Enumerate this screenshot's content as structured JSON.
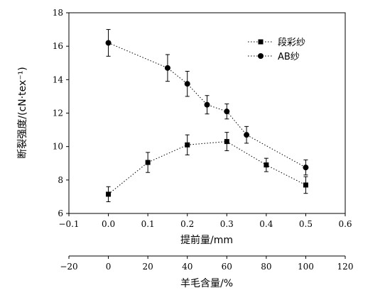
{
  "chart_data": {
    "type": "line",
    "xlabel": "提前量/mm",
    "ylabel": "断裂强度/(cN·tex⁻¹)",
    "secondary_xlabel": "羊毛含量/%",
    "xlim": [
      -0.1,
      0.6
    ],
    "ylim": [
      6,
      18
    ],
    "secondary_xlim": [
      -20,
      120
    ],
    "x_ticks": [
      "−0.1",
      "0.0",
      "0.1",
      "0.2",
      "0.3",
      "0.4",
      "0.5",
      "0.6"
    ],
    "y_ticks": [
      "6",
      "8",
      "10",
      "12",
      "14",
      "16",
      "18"
    ],
    "secondary_x_ticks": [
      "−20",
      "0",
      "20",
      "40",
      "60",
      "80",
      "100",
      "120"
    ],
    "grid": false,
    "legend_position": "top-right",
    "series": [
      {
        "name": "段彩纱",
        "marker": "square",
        "x": [
          0.0,
          0.1,
          0.2,
          0.3,
          0.4,
          0.5
        ],
        "values": [
          7.15,
          9.05,
          10.1,
          10.3,
          8.9,
          7.7
        ],
        "errors": [
          0.45,
          0.6,
          0.6,
          0.55,
          0.4,
          0.5
        ]
      },
      {
        "name": "AB纱",
        "marker": "circle",
        "x": [
          0.0,
          0.15,
          0.2,
          0.25,
          0.3,
          0.35,
          0.5
        ],
        "values": [
          16.2,
          14.7,
          13.75,
          12.5,
          12.1,
          10.7,
          8.75
        ],
        "errors": [
          0.8,
          0.8,
          0.75,
          0.55,
          0.45,
          0.5,
          0.45
        ]
      }
    ]
  }
}
